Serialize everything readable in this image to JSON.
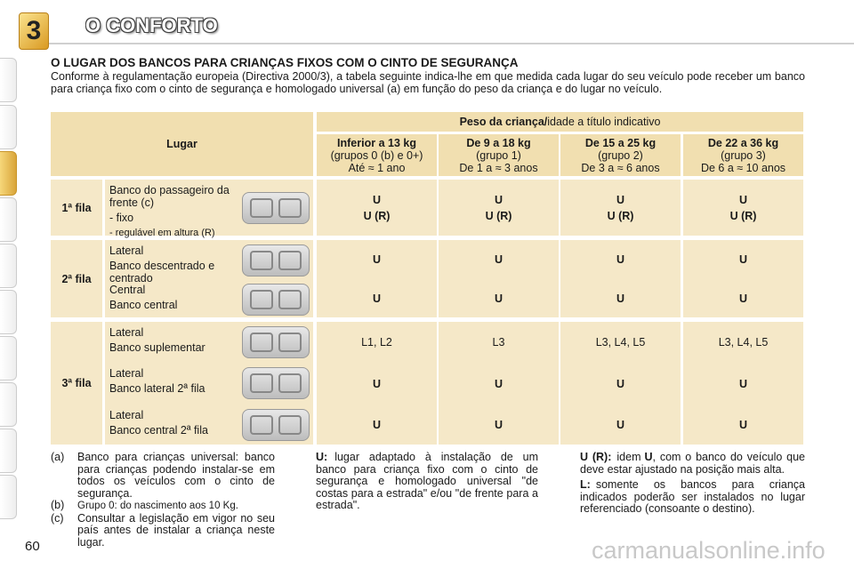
{
  "header": {
    "chapter": "3",
    "title": "O CONFORTO"
  },
  "section_title": "O LUGAR DOS BANCOS PARA CRIANÇAS FIXOS COM O CINTO DE SEGURANÇA",
  "intro": "Conforme à regulamentação europeia (Directiva 2000/3), a tabela seguinte indica-lhe em que medida cada lugar do seu veículo pode receber um banco para criança fixo com o cinto de segurança e homologado universal (a) em função do peso da criança e do lugar no veículo.",
  "table": {
    "corner": "Lugar",
    "weight_title": "Peso da criança/",
    "weight_note": "idade a título indicativo",
    "columns": [
      {
        "weight": "Inferior a 13 kg",
        "group": "(grupos 0 (b) e 0+)",
        "age": "Até ≈ 1 ano"
      },
      {
        "weight": "De 9 a 18 kg",
        "group": "(grupo 1)",
        "age": "De 1 a ≈ 3 anos"
      },
      {
        "weight": "De 15 a 25 kg",
        "group": "(grupo 2)",
        "age": "De 3 a ≈ 6 anos"
      },
      {
        "weight": "De 22 a 36 kg",
        "group": "(grupo 3)",
        "age": "De 6 a ≈ 10 anos"
      }
    ],
    "rows": [
      {
        "label": "1ª fila",
        "blocks": [
          {
            "lines": [
              "Banco do passageiro da frente (c)",
              "- fixo",
              "- regulável em altura (R)"
            ],
            "values": [
              [
                "U",
                "U (R)"
              ],
              [
                "U",
                "U (R)"
              ],
              [
                "U",
                "U (R)"
              ],
              [
                "U",
                "U (R)"
              ]
            ]
          }
        ]
      },
      {
        "label": "2ª fila",
        "blocks": [
          {
            "lines": [
              "Lateral",
              "Banco descentrado e centrado"
            ],
            "values": [
              "U",
              "U",
              "U",
              "U"
            ]
          },
          {
            "lines": [
              "Central",
              "Banco central"
            ],
            "values": [
              "U",
              "U",
              "U",
              "U"
            ]
          }
        ]
      },
      {
        "label": "3ª fila",
        "blocks": [
          {
            "lines": [
              "Lateral",
              "Banco suplementar"
            ],
            "values": [
              "L1, L2",
              "L3",
              "L3, L4, L5",
              "L3, L4, L5"
            ]
          },
          {
            "lines": [
              "Lateral",
              "Banco lateral 2ª fila"
            ],
            "values": [
              "U",
              "U",
              "U",
              "U"
            ]
          },
          {
            "lines": [
              "Lateral",
              "Banco central 2ª fila"
            ],
            "values": [
              "U",
              "U",
              "U",
              "U"
            ]
          }
        ]
      }
    ]
  },
  "notes": {
    "left": [
      {
        "key": "(a)",
        "text": "Banco para crianças universal: banco para crianças podendo instalar-se em todos os veículos com o cinto de segurança."
      },
      {
        "key": "(b)",
        "text": "Grupo 0: do nascimento aos 10 Kg."
      },
      {
        "key": "(c)",
        "text": "Consultar a legislação em vigor no seu país antes de instalar a criança neste lugar."
      }
    ],
    "middle": {
      "term": "U:",
      "text": "lugar adaptado à instalação de um banco para criança fixo com o cinto de segurança e homologado universal \"de costas para a estrada\" e/ou \"de frente para a estrada\"."
    },
    "right": [
      {
        "term": "U (R):",
        "pre": "idem",
        "bold": "U",
        "post": ", com o banco do veículo que deve estar ajustado na posição mais alta."
      },
      {
        "term": "L:",
        "text": "somente os bancos para criança indicados poderão ser instalados no lugar referenciado (consoante o destino)."
      }
    ]
  },
  "page_number": "60",
  "watermark": "carmanualsonline.info"
}
